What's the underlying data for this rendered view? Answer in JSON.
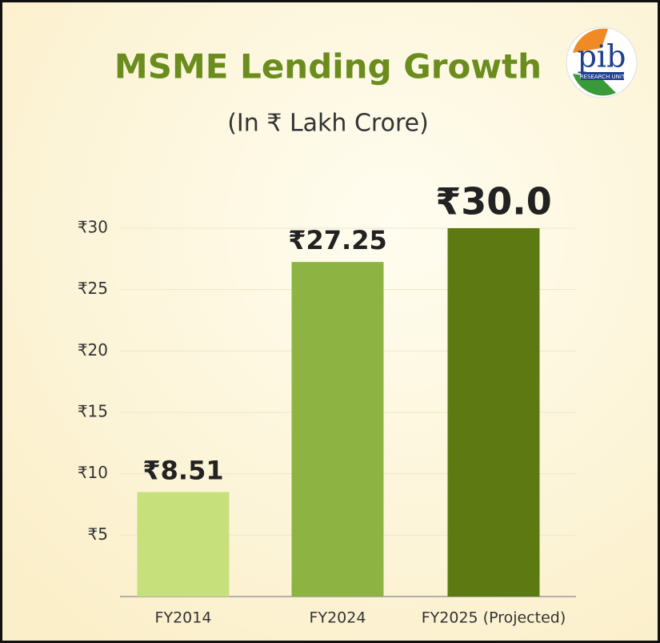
{
  "chart_data": {
    "type": "bar",
    "title": "MSME Lending Growth",
    "subtitle": "(In ₹ Lakh Crore)",
    "categories": [
      "FY2014",
      "FY2024",
      "FY2025 (Projected)"
    ],
    "values": [
      8.51,
      27.25,
      30.0
    ],
    "value_labels": [
      "₹8.51",
      "₹27.25",
      "₹30.0"
    ],
    "colors": [
      "#c6e17c",
      "#8db443",
      "#5d7a12"
    ],
    "ylim": [
      0,
      30
    ],
    "yticks": [
      {
        "value": 5,
        "label": "₹5"
      },
      {
        "value": 10,
        "label": "₹10"
      },
      {
        "value": 15,
        "label": "₹15"
      },
      {
        "value": 20,
        "label": "₹20"
      },
      {
        "value": 25,
        "label": "₹25"
      },
      {
        "value": 30,
        "label": "₹30"
      }
    ],
    "grid": true
  },
  "logo": {
    "text": "pib",
    "subtext": "RESEARCH UNIT"
  }
}
